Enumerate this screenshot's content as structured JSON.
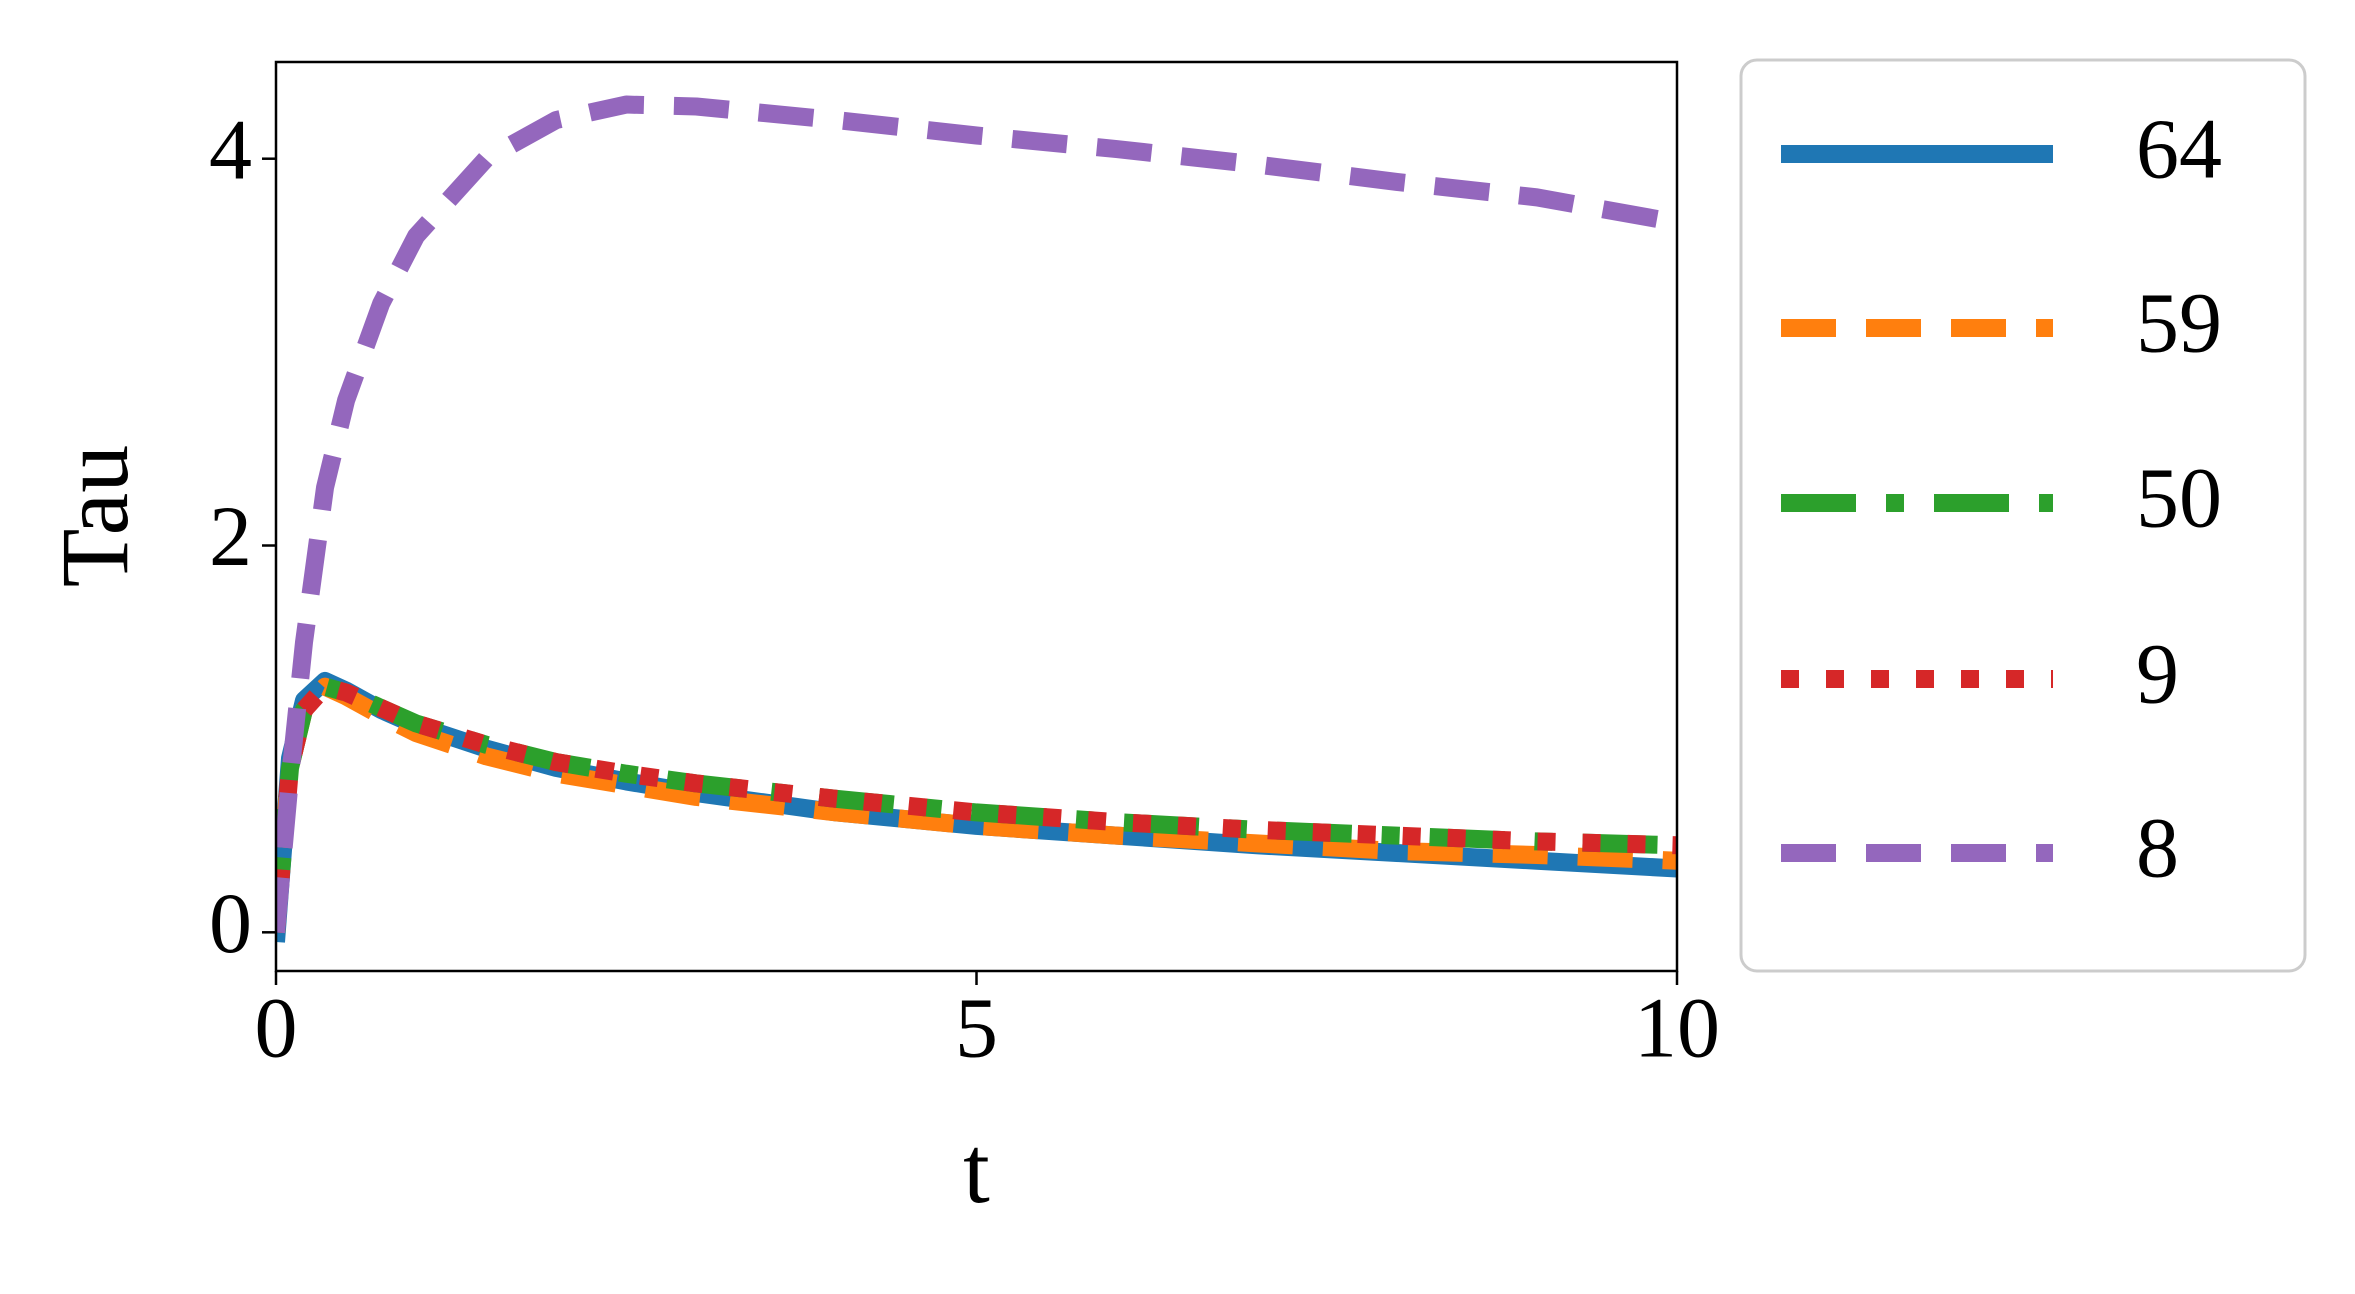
{
  "chart_data": {
    "type": "line",
    "xlabel": "t",
    "ylabel": "Tau",
    "x": [
      0,
      0.1,
      0.2,
      0.35,
      0.5,
      0.75,
      1,
      1.5,
      2,
      2.5,
      3,
      4,
      5,
      6,
      7,
      8,
      9,
      10
    ],
    "series": [
      {
        "name": "64",
        "color": "#1f77b4",
        "linestyle": "solid",
        "values": [
          -0.05,
          0.9,
          1.2,
          1.3,
          1.25,
          1.15,
          1.07,
          0.95,
          0.85,
          0.78,
          0.72,
          0.62,
          0.55,
          0.5,
          0.45,
          0.41,
          0.37,
          0.33
        ]
      },
      {
        "name": "59",
        "color": "#ff7f0e",
        "linestyle": "dashed",
        "values": [
          0.0,
          0.85,
          1.15,
          1.27,
          1.22,
          1.12,
          1.03,
          0.91,
          0.82,
          0.76,
          0.7,
          0.62,
          0.55,
          0.5,
          0.46,
          0.42,
          0.4,
          0.37
        ]
      },
      {
        "name": "50",
        "color": "#2ca02c",
        "linestyle": "dashdot",
        "values": [
          0.0,
          0.85,
          1.15,
          1.27,
          1.24,
          1.16,
          1.08,
          0.97,
          0.88,
          0.82,
          0.77,
          0.69,
          0.62,
          0.57,
          0.53,
          0.5,
          0.47,
          0.45
        ]
      },
      {
        "name": "9",
        "color": "#d62728",
        "linestyle": "dotted",
        "values": [
          0.0,
          0.85,
          1.15,
          1.27,
          1.24,
          1.16,
          1.08,
          0.97,
          0.88,
          0.82,
          0.77,
          0.69,
          0.62,
          0.57,
          0.53,
          0.5,
          0.47,
          0.45
        ]
      },
      {
        "name": "8",
        "color": "#9467bd",
        "linestyle": "dashed",
        "values": [
          0.0,
          0.8,
          1.5,
          2.3,
          2.75,
          3.25,
          3.6,
          4.0,
          4.2,
          4.28,
          4.27,
          4.2,
          4.12,
          4.05,
          3.97,
          3.88,
          3.8,
          3.67
        ]
      }
    ],
    "xlim": [
      0,
      10
    ],
    "ylim": [
      -0.2,
      4.5
    ],
    "xticks": [
      0,
      5,
      10
    ],
    "yticks": [
      0,
      2,
      4
    ],
    "grid": false,
    "legend": "outside right"
  }
}
